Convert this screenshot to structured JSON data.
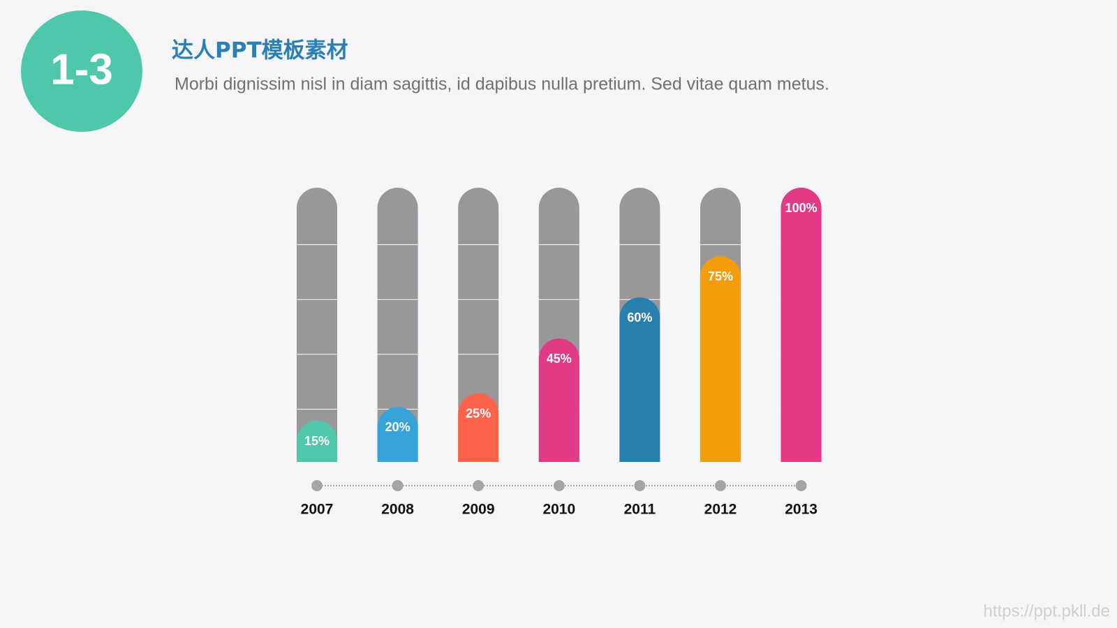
{
  "header": {
    "badge": "1-3",
    "title": "达人PPT模板素材",
    "subtitle": "Morbi dignissim nisl in diam sagittis, id dapibus nulla pretium. Sed vitae quam metus."
  },
  "chart_data": {
    "type": "bar",
    "categories": [
      "2007",
      "2008",
      "2009",
      "2010",
      "2011",
      "2012",
      "2013"
    ],
    "values": [
      15,
      20,
      25,
      45,
      60,
      75,
      100
    ],
    "value_labels": [
      "15%",
      "20%",
      "25%",
      "45%",
      "60%",
      "75%",
      "100%"
    ],
    "colors": [
      "#4fc7ab",
      "#36a3d9",
      "#fd634a",
      "#e23a86",
      "#2780b0",
      "#f49d0c",
      "#e23a86"
    ],
    "ylim": [
      0,
      100
    ]
  },
  "watermark": "https://ppt.pkll.de"
}
